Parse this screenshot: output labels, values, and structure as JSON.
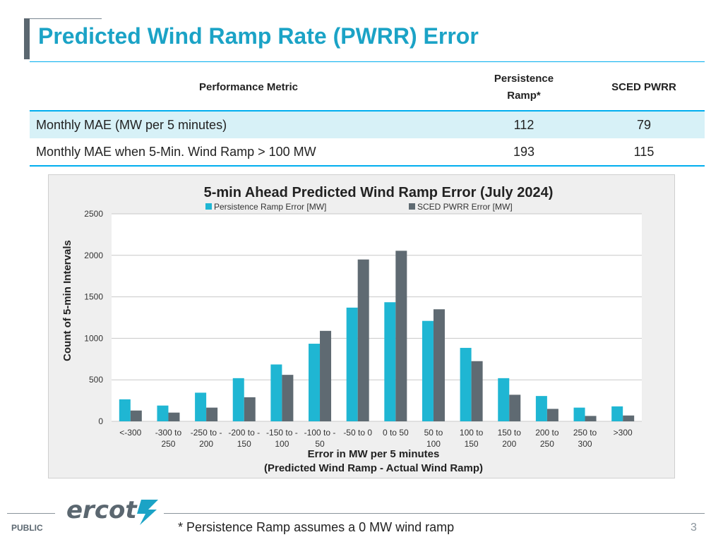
{
  "slide": {
    "title": "Predicted Wind Ramp Rate (PWRR) Error",
    "footer_label": "PUBLIC",
    "logo_text": "ercot",
    "footnote": "* Persistence Ramp assumes a 0 MW wind ramp",
    "page_number": "3"
  },
  "metrics_table": {
    "headers": [
      "Performance Metric",
      "Persistence Ramp*",
      "SCED PWRR"
    ],
    "rows": [
      {
        "metric": "Monthly MAE (MW per 5 minutes)",
        "persistence": "112",
        "sced": "79"
      },
      {
        "metric": "Monthly MAE when 5-Min. Wind Ramp > 100 MW",
        "persistence": "193",
        "sced": "115"
      }
    ]
  },
  "chart_data": {
    "type": "bar",
    "title": "5-min Ahead Predicted Wind Ramp Error (July 2024)",
    "xlabel_lines": [
      "Error in MW per 5 minutes",
      "(Predicted Wind Ramp - Actual Wind Ramp)"
    ],
    "ylabel": "Count of 5-min Intervals",
    "ylim": [
      0,
      2500
    ],
    "yticks": [
      0,
      500,
      1000,
      1500,
      2000,
      2500
    ],
    "grid": true,
    "legend_position": "top",
    "categories": [
      [
        "<-300"
      ],
      [
        "-300 to",
        "250"
      ],
      [
        "-250 to -",
        "200"
      ],
      [
        "-200 to -",
        "150"
      ],
      [
        "-150 to -",
        "100"
      ],
      [
        "-100 to -",
        "50"
      ],
      [
        "-50 to 0"
      ],
      [
        "0 to 50"
      ],
      [
        "50 to",
        "100"
      ],
      [
        "100 to",
        "150"
      ],
      [
        "150 to",
        "200"
      ],
      [
        "200 to",
        "250"
      ],
      [
        "250 to",
        "300"
      ],
      [
        ">300"
      ]
    ],
    "series": [
      {
        "name": "Persistence Ramp Error [MW]",
        "color": "#1fb6d3",
        "values": [
          265,
          190,
          345,
          520,
          685,
          935,
          1370,
          1435,
          1210,
          885,
          520,
          305,
          165,
          180
        ]
      },
      {
        "name": "SCED PWRR Error [MW]",
        "color": "#5f6a72",
        "values": [
          130,
          105,
          165,
          290,
          560,
          1090,
          1950,
          2055,
          1350,
          725,
          320,
          150,
          65,
          70
        ]
      }
    ]
  }
}
